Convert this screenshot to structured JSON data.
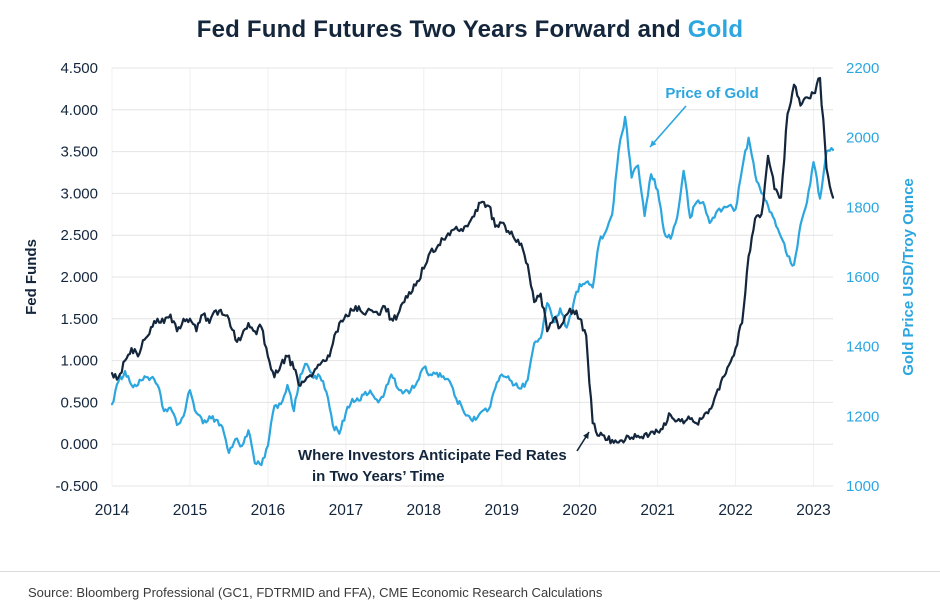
{
  "title": {
    "main": "Fed Fund Futures Two Years Forward and ",
    "accent": "Gold"
  },
  "colors": {
    "navy": "#14263C",
    "blue": "#2CA6DF",
    "gridline": "#e4e4e4"
  },
  "chart_data": {
    "type": "line",
    "title": "Fed Fund Futures Two Years Forward and Gold",
    "grid": true,
    "x_start": 2014,
    "x_step_years": 0.0833333,
    "x_ticks": [
      "2014",
      "2015",
      "2016",
      "2017",
      "2018",
      "2019",
      "2020",
      "2021",
      "2022",
      "2023"
    ],
    "y_left": {
      "label": "Fed Funds",
      "min": -0.5,
      "max": 4.5,
      "ticks": [
        "4.500",
        "4.000",
        "3.500",
        "3.000",
        "2.500",
        "2.000",
        "1.500",
        "1.000",
        "0.500",
        "0.000",
        "-0.500"
      ]
    },
    "y_right": {
      "label": "Gold Price USD/Troy Ounce",
      "min": 1000,
      "max": 2200,
      "ticks": [
        "2200",
        "2000",
        "1800",
        "1600",
        "1400",
        "1200",
        "1000"
      ]
    },
    "series": [
      {
        "name": "Fed Fund Futures Two Years Forward",
        "axis": "left",
        "color": "#14263C",
        "values": [
          0.85,
          0.8,
          1.0,
          1.15,
          1.05,
          1.25,
          1.4,
          1.5,
          1.45,
          1.55,
          1.35,
          1.5,
          1.5,
          1.35,
          1.55,
          1.45,
          1.6,
          1.55,
          1.5,
          1.25,
          1.3,
          1.45,
          1.35,
          1.4,
          1.05,
          0.8,
          0.95,
          1.05,
          0.9,
          0.7,
          0.8,
          0.85,
          0.95,
          1.0,
          1.2,
          1.45,
          1.55,
          1.6,
          1.65,
          1.55,
          1.6,
          1.55,
          1.65,
          1.5,
          1.55,
          1.7,
          1.8,
          1.95,
          2.1,
          2.3,
          2.35,
          2.45,
          2.5,
          2.6,
          2.55,
          2.65,
          2.8,
          2.9,
          2.85,
          2.6,
          2.65,
          2.55,
          2.45,
          2.4,
          2.15,
          1.7,
          1.8,
          1.35,
          1.5,
          1.4,
          1.55,
          1.6,
          1.5,
          1.3,
          0.25,
          0.1,
          0.05,
          0.05,
          0.02,
          0.05,
          0.08,
          0.1,
          0.12,
          0.15,
          0.15,
          0.25,
          0.35,
          0.28,
          0.25,
          0.3,
          0.25,
          0.32,
          0.42,
          0.6,
          0.8,
          0.95,
          1.15,
          1.45,
          2.25,
          2.7,
          2.75,
          3.45,
          3.05,
          2.95,
          3.95,
          4.3,
          4.05,
          4.15,
          4.2,
          4.38,
          3.3,
          2.95
        ]
      },
      {
        "name": "Price of Gold",
        "axis": "right",
        "color": "#2CA6DF",
        "values": [
          1235,
          1300,
          1330,
          1290,
          1290,
          1315,
          1310,
          1290,
          1215,
          1225,
          1175,
          1200,
          1275,
          1210,
          1180,
          1200,
          1190,
          1170,
          1095,
          1135,
          1115,
          1160,
          1065,
          1060,
          1115,
          1230,
          1235,
          1290,
          1215,
          1320,
          1350,
          1310,
          1315,
          1270,
          1175,
          1150,
          1210,
          1250,
          1245,
          1270,
          1265,
          1240,
          1270,
          1320,
          1280,
          1270,
          1275,
          1300,
          1340,
          1320,
          1325,
          1315,
          1300,
          1250,
          1220,
          1200,
          1190,
          1215,
          1220,
          1280,
          1320,
          1315,
          1290,
          1280,
          1305,
          1410,
          1425,
          1525,
          1470,
          1510,
          1455,
          1520,
          1580,
          1585,
          1570,
          1700,
          1730,
          1780,
          1960,
          2060,
          1885,
          1920,
          1775,
          1895,
          1850,
          1730,
          1710,
          1770,
          1905,
          1770,
          1815,
          1815,
          1755,
          1785,
          1795,
          1805,
          1795,
          1910,
          2000,
          1895,
          1840,
          1805,
          1765,
          1715,
          1660,
          1635,
          1750,
          1815,
          1930,
          1825,
          1960,
          1965
        ]
      }
    ],
    "annotations": [
      {
        "text": "Price of Gold",
        "color": "#2CA6DF"
      },
      {
        "text": "Where Investors Anticipate Fed Rates",
        "text2": "in Two Years’ Time",
        "color": "#14263C"
      }
    ]
  },
  "footer": {
    "source": "Source: Bloomberg Professional (GC1, FDTRMID and FFA), CME Economic Research Calculations"
  }
}
